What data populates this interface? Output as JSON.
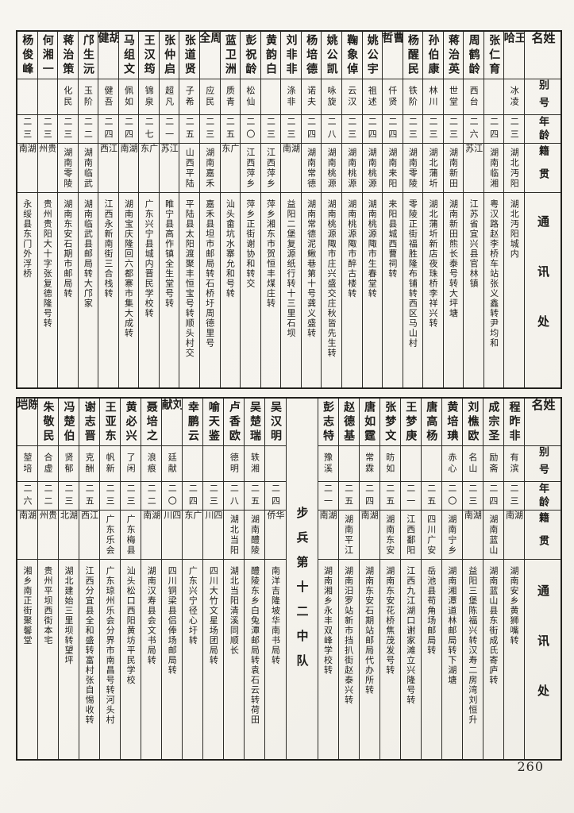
{
  "page": {
    "number": "260",
    "paper_color": "#f6f4ef",
    "ink_color": "#1d1c19"
  },
  "headers": {
    "name": "姓名",
    "alias": "别号",
    "age": "年龄",
    "origin": "籍贯",
    "address": "通讯处"
  },
  "tables": [
    {
      "id": "top",
      "unit_label": "",
      "unit_after_index": -1,
      "persons": [
        {
          "name": "王哈",
          "alias": "冰凌",
          "age": "二三",
          "origin": "湖北沔阳",
          "address": "湖北沔阳城内"
        },
        {
          "name": "张仁育",
          "alias": "",
          "age": "二四",
          "origin": "湖南临湘",
          "address": "粤汉路赵李桥车站张义鑫转尹均和"
        },
        {
          "name": "周鹤龄",
          "alias": "西台",
          "age": "二六",
          "origin": "江苏",
          "address": "江苏省宜兴县官林镇"
        },
        {
          "name": "蒋治英",
          "alias": "世堂",
          "age": "二三",
          "origin": "湖南新田",
          "address": "湖南新田熊长泰号转大坪塘"
        },
        {
          "name": "孙伯康",
          "alias": "林川",
          "age": "二三",
          "origin": "湖北蒲圻",
          "address": "湖北蒲圻新店夜珠桥李祥兴转"
        },
        {
          "name": "杨醒民",
          "alias": "铁阶",
          "age": "二三",
          "origin": "湖南零陵",
          "address": "零陵正街福胜隆布铺转西区马山村"
        },
        {
          "name": "曹哲",
          "alias": "仟贤",
          "age": "二四",
          "origin": "湖南来阳",
          "address": "来阳县城西曹祠转"
        },
        {
          "name": "姚公宇",
          "alias": "祖述",
          "age": "二四",
          "origin": "湖南桃源",
          "address": "湖南桃源陬市生春堂转"
        },
        {
          "name": "鞠象倬",
          "alias": "云汉",
          "age": "二三",
          "origin": "湖南桃源",
          "address": "湖南桃源陬市醉古楼转"
        },
        {
          "name": "姚公凯",
          "alias": "咏旋",
          "age": "二八",
          "origin": "湖南桃源",
          "address": "湖南桃源陬市庄兴盛交庄秋皆先生转"
        },
        {
          "name": "杨培德",
          "alias": "诺夫",
          "age": "二四",
          "origin": "湖南常德",
          "address": "湖南常德泥鳅巷第十号龚义盛转"
        },
        {
          "name": "刘非非",
          "alias": "涤非",
          "age": "二三",
          "origin": "湖南",
          "address": "益阳二堡复源纸行转十三里石坝"
        },
        {
          "name": "黄韵白",
          "alias": "",
          "age": "二三",
          "origin": "江西萍乡",
          "address": "萍乡湘东市贺恒丰煤庄转"
        },
        {
          "name": "彭祝龄",
          "alias": "松仙",
          "age": "二〇",
          "origin": "江西萍乡",
          "address": "萍乡正街谢协和转交"
        },
        {
          "name": "蓝卫洲",
          "alias": "质青",
          "age": "二五",
          "origin": "广东",
          "address": "汕头畲坑水寨允和号转"
        },
        {
          "name": "周全",
          "alias": "应民",
          "age": "二三",
          "origin": "湖南嘉禾",
          "address": "嘉禾县坦市邮局转石桥圩周德里号"
        },
        {
          "name": "张道贤",
          "alias": "子希",
          "age": "二五",
          "origin": "山西平陆",
          "address": "平陆县太阳渡聚丰恒宝号转顺头村交"
        },
        {
          "name": "张仲启",
          "alias": "超凡",
          "age": "二一",
          "origin": "江苏",
          "address": "睢宁县高作镇全生堂号转"
        },
        {
          "name": "王汉筠",
          "alias": "锦泉",
          "age": "二七",
          "origin": "广东",
          "address": "广东兴宁县城内晋民学校转"
        },
        {
          "name": "马组文",
          "alias": "佩如",
          "age": "二四",
          "origin": "湖南",
          "address": "湖南宝庆隆回六都寨市集大成转"
        },
        {
          "name": "胡健",
          "alias": "健吾",
          "age": "二四",
          "origin": "江西",
          "address": "江西永新南街三合栈转"
        },
        {
          "name": "邝生沅",
          "alias": "玉阶",
          "age": "二二",
          "origin": "湖南临武",
          "address": "湖南临武县邮局转大邝家"
        },
        {
          "name": "蒋治策",
          "alias": "化民",
          "age": "二三",
          "origin": "湖南零陵",
          "address": "湖南东安石期市邮局转"
        },
        {
          "name": "何湘一",
          "alias": "",
          "age": "二三",
          "origin": "贵州",
          "address": "贵州贵阳大十字张复德隆号转"
        },
        {
          "name": "杨俊峰",
          "alias": "",
          "age": "二三",
          "origin": "湖南",
          "address": "永绥县东门外浮桥"
        }
      ]
    },
    {
      "id": "bottom",
      "unit_label": "步兵第十二中队",
      "unit_after_index": 9,
      "persons": [
        {
          "name": "程昨非",
          "alias": "有滨",
          "age": "二三",
          "origin": "湖南",
          "address": "湖南安乡黄狮嘴转"
        },
        {
          "name": "成宗圣",
          "alias": "励斋",
          "age": "二四",
          "origin": "湖南蓝山",
          "address": "湖南蓝山县东街成氏寄庐转"
        },
        {
          "name": "刘樵欧",
          "alias": "名山",
          "age": "二三",
          "origin": "湖南",
          "address": "益阳三堡陈福兴转汉寿二房湾刘恒升"
        },
        {
          "name": "黄培琠",
          "alias": "赤心",
          "age": "二〇",
          "origin": "湖南宁乡",
          "address": "湖南湘潭道林邮局转下湖塘"
        },
        {
          "name": "唐高杨",
          "alias": "",
          "age": "二五",
          "origin": "四川广安",
          "address": "岳池县苟角场邮局转"
        },
        {
          "name": "王梦庚",
          "alias": "",
          "age": "二一",
          "origin": "江西鄱阳",
          "address": "江西九江湖口谢家滩立兴隆号转"
        },
        {
          "name": "张梦文",
          "alias": "昉如",
          "age": "二五",
          "origin": "湖南东安",
          "address": "湖南东安花桥焦茂发号转"
        },
        {
          "name": "唐如霆",
          "alias": "常霖",
          "age": "二四",
          "origin": "湖南",
          "address": "湖南东安石期站邮局代办所转"
        },
        {
          "name": "赵德基",
          "alias": "",
          "age": "二五",
          "origin": "湖南平江",
          "address": "湖南汨罗站新市挡扒街赵泰兴转"
        },
        {
          "name": "彭志特",
          "alias": "豫溪",
          "age": "二一",
          "origin": "湖南",
          "address": "湖南湘乡永丰双峰学校转"
        },
        {
          "name": "吴汉明",
          "alias": "",
          "age": "二四",
          "origin": "华侨",
          "address": "南洋吉隆坡华南书局转"
        },
        {
          "name": "吴楚瑞",
          "alias": "轶湘",
          "age": "二五",
          "origin": "湖南醴陵",
          "address": "醴陵东乡白兔潭邮局转袁石云转荷田"
        },
        {
          "name": "卢香欧",
          "alias": "德明",
          "age": "二八",
          "origin": "湖北当阳",
          "address": "湖北当阳清溪同顺长"
        },
        {
          "name": "喻天鉴",
          "alias": "",
          "age": "二三",
          "origin": "四川",
          "address": "四川大竹文星场团局转"
        },
        {
          "name": "幸鹏云",
          "alias": "",
          "age": "二四",
          "origin": "广东",
          "address": "广东兴宁径心圩转"
        },
        {
          "name": "刘献",
          "alias": "廷献",
          "age": "二〇",
          "origin": "四川",
          "address": "四川铜梁县侣俸场邮局转"
        },
        {
          "name": "聂培之",
          "alias": "浪痕",
          "age": "二二",
          "origin": "湖南",
          "address": "湖南汉寿县会文书局转"
        },
        {
          "name": "黄必兴",
          "alias": "了闲",
          "age": "二三",
          "origin": "广东梅县",
          "address": "汕头松口西阳黄坊平民学校"
        },
        {
          "name": "王亚东",
          "alias": "帆新",
          "age": "二三",
          "origin": "广东乐会",
          "address": "广东琼州乐会分界市南昌号转河头村"
        },
        {
          "name": "谢志晋",
          "alias": "克酬",
          "age": "二五",
          "origin": "江西",
          "address": "江西分宜县全和盛转富村张自惕收转"
        },
        {
          "name": "冯楚伯",
          "alias": "贤郁",
          "age": "二三",
          "origin": "湖北",
          "address": "湖北建始三里坝转望坪"
        },
        {
          "name": "朱敬民",
          "alias": "合虚",
          "age": "二二",
          "origin": "贵州",
          "address": "贵州平坝西街本宅"
        },
        {
          "name": "陈垲",
          "alias": "堃培",
          "age": "二六",
          "origin": "湖南",
          "address": "湘乡南正街聚馨堂"
        }
      ]
    }
  ]
}
